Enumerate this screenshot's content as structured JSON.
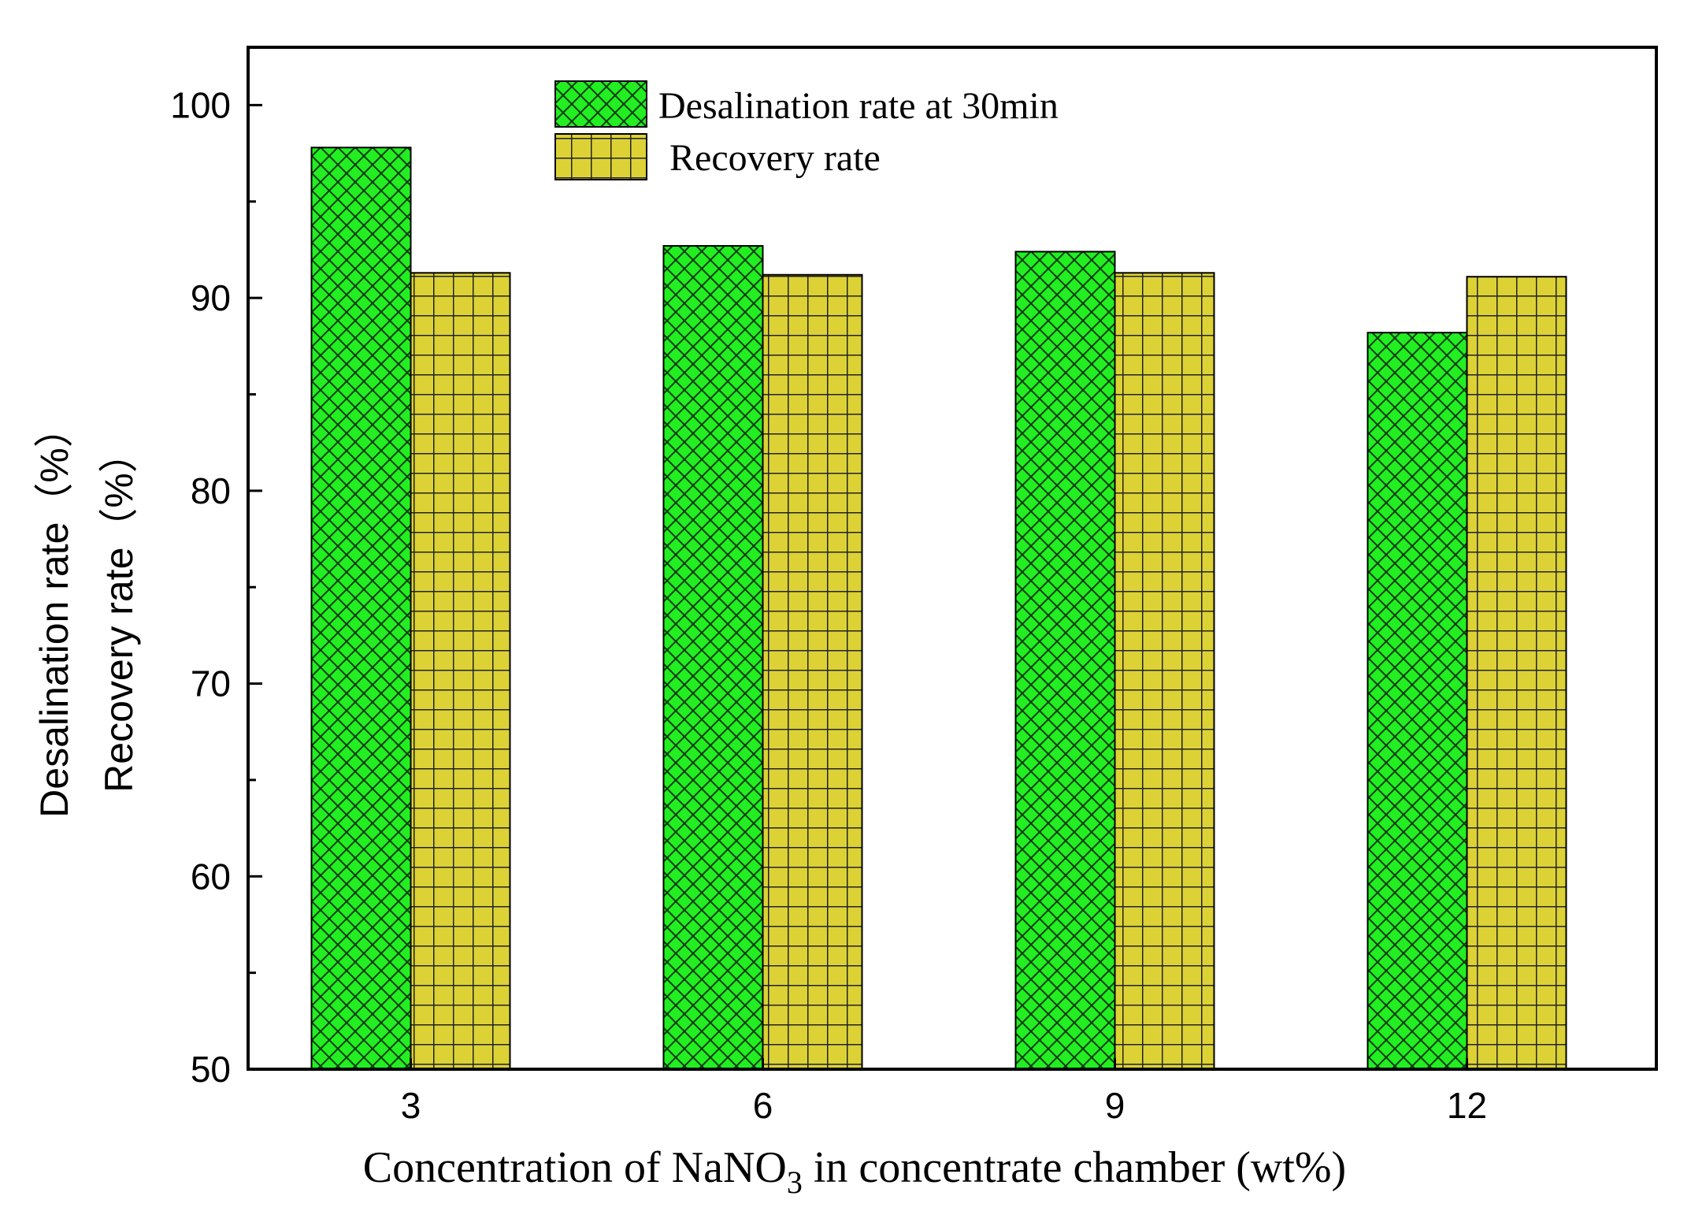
{
  "chart_data": {
    "type": "bar",
    "categories": [
      "3",
      "6",
      "9",
      "12"
    ],
    "series": [
      {
        "name": "Desalination rate at 30min",
        "values": [
          97.8,
          92.7,
          92.4,
          88.2
        ],
        "color": "#22ee22",
        "pattern": "crosshatch"
      },
      {
        "name": "Recovery rate",
        "values": [
          91.3,
          91.2,
          91.3,
          91.1
        ],
        "color": "#dcd236",
        "pattern": "grid"
      }
    ],
    "ylim": [
      50,
      103
    ],
    "yticks": [
      50,
      60,
      70,
      80,
      90,
      100
    ],
    "yticks_minor": [
      55,
      65,
      75,
      85,
      95
    ],
    "ylabel_line1": "Desalination rate（%）",
    "ylabel_line2": "Recovery rate（%）",
    "xlabel_main": "Concentration of NaNO",
    "xlabel_sub": "3",
    "xlabel_rest": " in concentrate chamber (wt%)",
    "legend_position": "top-center",
    "grid": false
  }
}
